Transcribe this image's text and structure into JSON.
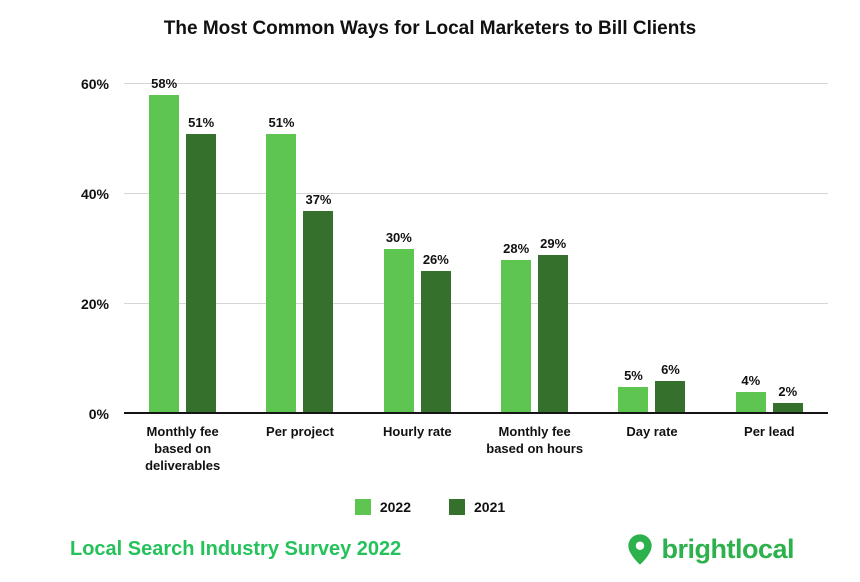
{
  "title": "The Most Common Ways for Local Marketers to Bill Clients",
  "chart_data": {
    "type": "bar",
    "title": "The Most Common Ways for Local Marketers to Bill Clients",
    "categories": [
      "Monthly fee\nbased on\ndeliverables",
      "Per project",
      "Hourly rate",
      "Monthly fee\nbased on hours",
      "Day rate",
      "Per lead"
    ],
    "series": [
      {
        "name": "2022",
        "color": "#5ec551",
        "values": [
          58,
          51,
          30,
          28,
          5,
          4
        ]
      },
      {
        "name": "2021",
        "color": "#35712c",
        "values": [
          51,
          37,
          26,
          29,
          6,
          2
        ]
      }
    ],
    "value_suffix": "%",
    "ylim": [
      0,
      60
    ],
    "yticks": [
      0,
      20,
      40,
      60
    ],
    "ytick_labels": [
      "0%",
      "20%",
      "40%",
      "60%"
    ],
    "grid": true,
    "legend_position": "bottom"
  },
  "footer": {
    "survey_label": "Local Search Industry Survey 2022",
    "brand": "brightlocal"
  },
  "colors": {
    "bar_2022": "#5ec551",
    "bar_2021": "#35712c",
    "survey_text": "#25c25b",
    "brand": "#2db14d",
    "gridline": "#d6d6d6",
    "axis": "#141414"
  }
}
